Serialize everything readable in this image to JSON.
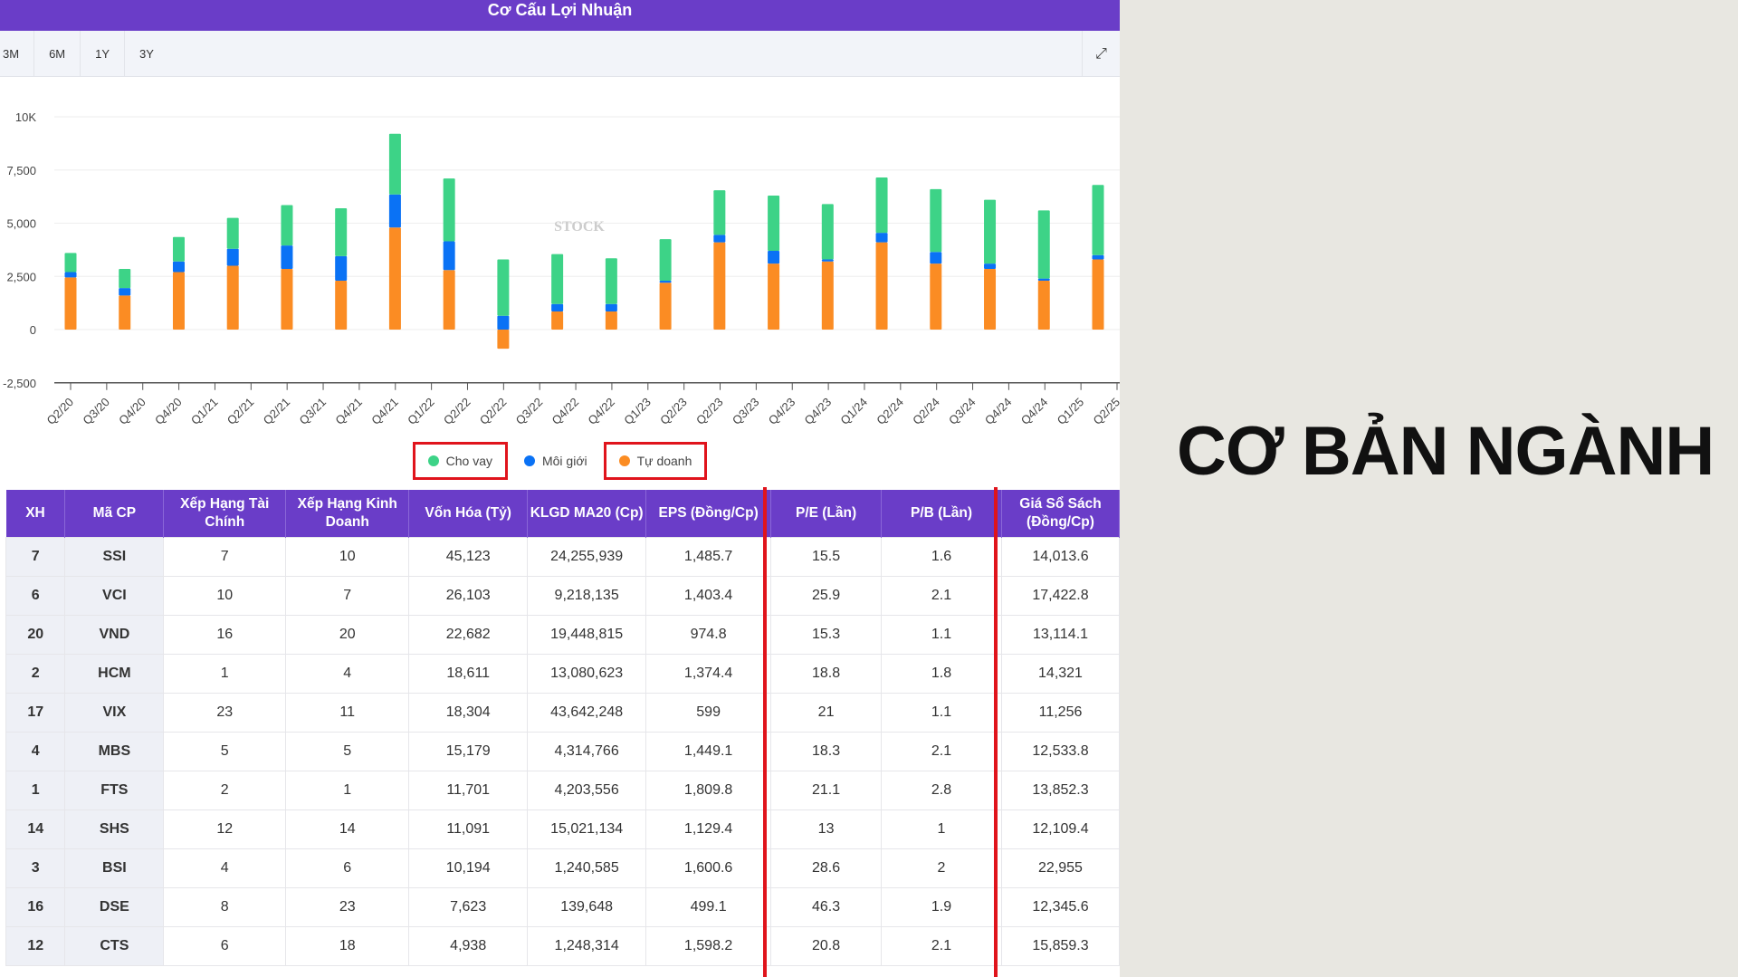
{
  "header": {
    "title": "Cơ Cấu Lợi Nhuận"
  },
  "toolbar": {
    "ranges": [
      "3M",
      "6M",
      "1Y",
      "3Y"
    ],
    "expand_icon": "expand-icon"
  },
  "side_title": "CƠ BẢN NGÀNH",
  "chart_data": {
    "type": "bar",
    "stacked": true,
    "yticks": [
      "10K",
      "7,500",
      "5,000",
      "2,500",
      "0",
      "-2,500"
    ],
    "ylim": [
      -2500,
      10000
    ],
    "xtick_labels": [
      "Q2/20",
      "Q3/20",
      "Q4/20",
      "Q4/20",
      "Q1/21",
      "Q2/21",
      "Q2/21",
      "Q3/21",
      "Q4/21",
      "Q4/21",
      "Q1/22",
      "Q2/22",
      "Q2/22",
      "Q3/22",
      "Q4/22",
      "Q4/22",
      "Q1/23",
      "Q2/23",
      "Q2/23",
      "Q3/23",
      "Q4/23",
      "Q4/23",
      "Q1/24",
      "Q2/24",
      "Q2/24",
      "Q3/24",
      "Q4/24",
      "Q4/24",
      "Q1/25",
      "Q2/25"
    ],
    "series": [
      {
        "name": "Tự doanh",
        "color": "#fb8c23",
        "values": [
          2450,
          1600,
          2700,
          3000,
          2850,
          2300,
          4800,
          2800,
          -900,
          850,
          850,
          2200,
          4100,
          3100,
          3200,
          4100,
          3100,
          2850,
          2300,
          3300
        ]
      },
      {
        "name": "Môi giới",
        "color": "#0a72f5",
        "values": [
          250,
          350,
          500,
          800,
          1100,
          1150,
          1550,
          1350,
          650,
          350,
          350,
          100,
          350,
          600,
          100,
          450,
          550,
          250,
          100,
          200
        ]
      },
      {
        "name": "Cho vay",
        "color": "#3dd387",
        "values": [
          900,
          900,
          1150,
          1450,
          1900,
          2250,
          2850,
          2950,
          2650,
          2350,
          2150,
          1950,
          2100,
          2600,
          2600,
          2600,
          2950,
          3000,
          3200,
          3300
        ]
      }
    ],
    "legend": [
      "Cho vay",
      "Môi giới",
      "Tự doanh"
    ],
    "grid": true,
    "legend_placement": "bottom"
  },
  "table": {
    "headers": [
      "XH",
      "Mã CP",
      "Xếp Hạng Tài Chính",
      "Xếp Hạng Kinh Doanh",
      "Vốn Hóa (Tỷ)",
      "KLGD MA20 (Cp)",
      "EPS (Đồng/Cp)",
      "P/E (Lần)",
      "P/B (Lần)",
      "Giá Sổ Sách (Đồng/Cp)"
    ],
    "rows": [
      [
        "7",
        "SSI",
        "7",
        "10",
        "45,123",
        "24,255,939",
        "1,485.7",
        "15.5",
        "1.6",
        "14,013.6"
      ],
      [
        "6",
        "VCI",
        "10",
        "7",
        "26,103",
        "9,218,135",
        "1,403.4",
        "25.9",
        "2.1",
        "17,422.8"
      ],
      [
        "20",
        "VND",
        "16",
        "20",
        "22,682",
        "19,448,815",
        "974.8",
        "15.3",
        "1.1",
        "13,114.1"
      ],
      [
        "2",
        "HCM",
        "1",
        "4",
        "18,611",
        "13,080,623",
        "1,374.4",
        "18.8",
        "1.8",
        "14,321"
      ],
      [
        "17",
        "VIX",
        "23",
        "11",
        "18,304",
        "43,642,248",
        "599",
        "21",
        "1.1",
        "11,256"
      ],
      [
        "4",
        "MBS",
        "5",
        "5",
        "15,179",
        "4,314,766",
        "1,449.1",
        "18.3",
        "2.1",
        "12,533.8"
      ],
      [
        "1",
        "FTS",
        "2",
        "1",
        "11,701",
        "4,203,556",
        "1,809.8",
        "21.1",
        "2.8",
        "13,852.3"
      ],
      [
        "14",
        "SHS",
        "12",
        "14",
        "11,091",
        "15,021,134",
        "1,129.4",
        "13",
        "1",
        "12,109.4"
      ],
      [
        "3",
        "BSI",
        "4",
        "6",
        "10,194",
        "1,240,585",
        "1,600.6",
        "28.6",
        "2",
        "22,955"
      ],
      [
        "16",
        "DSE",
        "8",
        "23",
        "7,623",
        "139,648",
        "499.1",
        "46.3",
        "1.9",
        "12,345.6"
      ],
      [
        "12",
        "CTS",
        "6",
        "18",
        "4,938",
        "1,248,314",
        "1,598.2",
        "20.8",
        "2.1",
        "15,859.3"
      ]
    ]
  }
}
